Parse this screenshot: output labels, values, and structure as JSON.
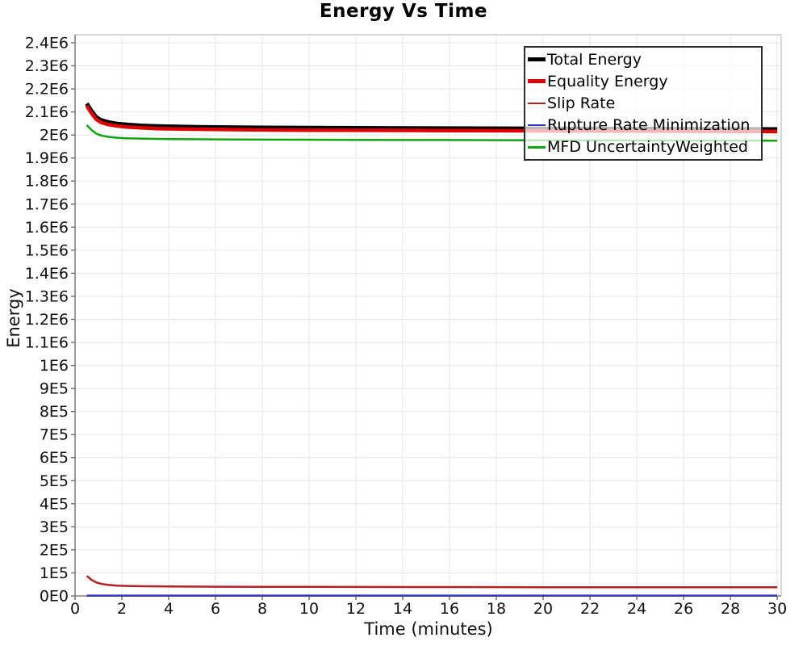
{
  "chart_data": {
    "type": "line",
    "title": "Energy Vs Time",
    "xlabel": "Time (minutes)",
    "ylabel": "Energy",
    "xlim": [
      0,
      30.17
    ],
    "ylim": [
      0,
      2435000
    ],
    "grid": true,
    "legend_position": "top-right",
    "x_ticks": {
      "values": [
        0,
        2,
        4,
        6,
        8,
        10,
        12,
        14,
        16,
        18,
        20,
        22,
        24,
        26,
        28,
        30
      ],
      "labels": [
        "0",
        "2",
        "4",
        "6",
        "8",
        "10",
        "12",
        "14",
        "16",
        "18",
        "20",
        "22",
        "24",
        "26",
        "28",
        "30"
      ]
    },
    "y_ticks": {
      "values": [
        0,
        100000,
        200000,
        300000,
        400000,
        500000,
        600000,
        700000,
        800000,
        900000,
        1000000,
        1100000,
        1200000,
        1300000,
        1400000,
        1500000,
        1600000,
        1700000,
        1800000,
        1900000,
        2000000,
        2100000,
        2200000,
        2300000,
        2400000
      ],
      "labels": [
        "0E0",
        "1E5",
        "2E5",
        "3E5",
        "4E5",
        "5E5",
        "6E5",
        "7E5",
        "8E5",
        "9E5",
        "1E6",
        "1.1E6",
        "1.2E6",
        "1.3E6",
        "1.4E6",
        "1.5E6",
        "1.6E6",
        "1.7E6",
        "1.8E6",
        "1.9E6",
        "2E6",
        "2.1E6",
        "2.2E6",
        "2.3E6",
        "2.4E6"
      ]
    },
    "colors": {
      "grid": "#e7e7e7",
      "axis": "#808080",
      "frame": "#c9c9c9",
      "tick": "#6e6e6e",
      "text": "#111111"
    },
    "series": [
      {
        "name": "Total Energy",
        "color": "#000000",
        "stroke_width": 5,
        "legend_stroke": 5,
        "points": [
          [
            0.5,
            2136000
          ],
          [
            0.7,
            2105000
          ],
          [
            0.9,
            2078000
          ],
          [
            1.1,
            2065000
          ],
          [
            1.4,
            2056000
          ],
          [
            1.8,
            2049000
          ],
          [
            2.2,
            2045000
          ],
          [
            2.8,
            2041000
          ],
          [
            3.5,
            2038000
          ],
          [
            4.5,
            2036000
          ],
          [
            6,
            2034000
          ],
          [
            8,
            2032000
          ],
          [
            10,
            2031000
          ],
          [
            13,
            2030000
          ],
          [
            16,
            2029000
          ],
          [
            20,
            2028000
          ],
          [
            24,
            2027000
          ],
          [
            27,
            2026000
          ],
          [
            30,
            2025000
          ]
        ]
      },
      {
        "name": "Equality Energy",
        "color": "#dd0000",
        "stroke_width": 4.5,
        "legend_stroke": 5,
        "points": [
          [
            0.5,
            2126000
          ],
          [
            0.7,
            2095000
          ],
          [
            0.9,
            2068000
          ],
          [
            1.1,
            2055000
          ],
          [
            1.4,
            2046000
          ],
          [
            1.8,
            2039000
          ],
          [
            2.2,
            2035000
          ],
          [
            2.8,
            2031000
          ],
          [
            3.5,
            2028000
          ],
          [
            4.5,
            2026000
          ],
          [
            6,
            2024000
          ],
          [
            8,
            2022000
          ],
          [
            10,
            2021000
          ],
          [
            13,
            2020000
          ],
          [
            16,
            2019000
          ],
          [
            20,
            2018000
          ],
          [
            24,
            2017000
          ],
          [
            27,
            2016000
          ],
          [
            30,
            2015000
          ]
        ]
      },
      {
        "name": "Slip Rate",
        "color": "#b22222",
        "stroke_width": 2.5,
        "legend_stroke": 2.5,
        "points": [
          [
            0.5,
            87000
          ],
          [
            0.7,
            70000
          ],
          [
            0.9,
            59000
          ],
          [
            1.1,
            53000
          ],
          [
            1.4,
            48000
          ],
          [
            1.8,
            45000
          ],
          [
            2.2,
            43500
          ],
          [
            3,
            42000
          ],
          [
            4,
            41000
          ],
          [
            6,
            40000
          ],
          [
            8,
            39500
          ],
          [
            12,
            39000
          ],
          [
            16,
            38500
          ],
          [
            20,
            38000
          ],
          [
            25,
            37700
          ],
          [
            30,
            37500
          ]
        ]
      },
      {
        "name": "Rupture Rate Minimization",
        "color": "#3333bb",
        "stroke_width": 2.5,
        "legend_stroke": 2.5,
        "points": [
          [
            0.5,
            1500
          ],
          [
            10,
            1500
          ],
          [
            20,
            1500
          ],
          [
            30,
            1500
          ]
        ]
      },
      {
        "name": "MFD UncertaintyWeighted",
        "color": "#0ea50e",
        "stroke_width": 2.5,
        "legend_stroke": 2.5,
        "points": [
          [
            0.5,
            2043000
          ],
          [
            0.7,
            2022000
          ],
          [
            0.9,
            2006000
          ],
          [
            1.1,
            1998000
          ],
          [
            1.4,
            1992000
          ],
          [
            1.8,
            1988000
          ],
          [
            2.2,
            1986000
          ],
          [
            3,
            1984000
          ],
          [
            4,
            1982000
          ],
          [
            6,
            1981000
          ],
          [
            8,
            1980000
          ],
          [
            12,
            1979000
          ],
          [
            16,
            1978000
          ],
          [
            20,
            1977000
          ],
          [
            25,
            1976000
          ],
          [
            30,
            1975000
          ]
        ]
      }
    ]
  }
}
